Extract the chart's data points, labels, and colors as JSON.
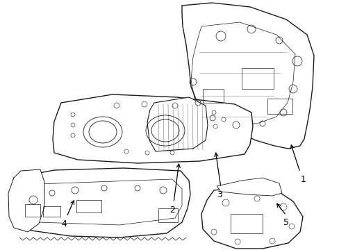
{
  "background_color": "#ffffff",
  "line_color": "#1a1a1a",
  "label_color": "#000000",
  "figsize": [
    4.89,
    3.6
  ],
  "dpi": 100,
  "part_labels": [
    "1",
    "2",
    "3",
    "4",
    "5"
  ]
}
